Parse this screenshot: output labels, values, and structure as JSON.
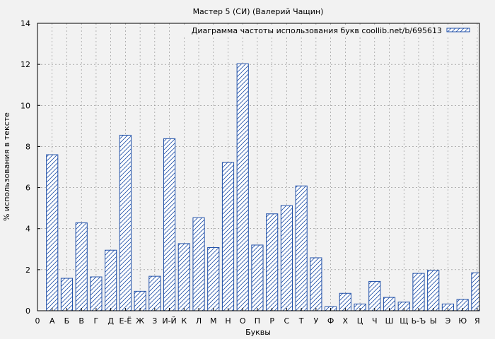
{
  "chart_data": {
    "type": "bar",
    "title": "Мастер 5 (СИ) (Валерий Чащин)",
    "xlabel": "Буквы",
    "ylabel": "% использования в тексте",
    "legend": {
      "label": "Диаграмма частоты использования букв coollib.net/b/695613",
      "placement": "top-right"
    },
    "ylim": [
      0,
      14
    ],
    "yticks": [
      0,
      2,
      4,
      6,
      8,
      10,
      12,
      14
    ],
    "x_origin_label": "0",
    "categories": [
      "А",
      "Б",
      "В",
      "Г",
      "Д",
      "Е-Ё",
      "Ж",
      "З",
      "И-Й",
      "К",
      "Л",
      "М",
      "Н",
      "О",
      "П",
      "Р",
      "С",
      "Т",
      "У",
      "Ф",
      "Х",
      "Ц",
      "Ч",
      "Ш",
      "Щ",
      "Ь-Ъ",
      "Ы",
      "Э",
      "Ю",
      "Я"
    ],
    "values": [
      7.6,
      1.58,
      4.28,
      1.65,
      2.95,
      8.55,
      0.95,
      1.68,
      8.38,
      3.27,
      4.53,
      3.08,
      7.22,
      12.03,
      3.2,
      4.72,
      5.12,
      6.08,
      2.58,
      0.2,
      0.85,
      0.33,
      1.43,
      0.65,
      0.42,
      1.82,
      1.97,
      0.33,
      0.55,
      1.85
    ],
    "grid": true,
    "colors": {
      "bar_stroke": "#1f4fa8",
      "bar_hatch": "#1f4fa8",
      "bar_fill": "#ffffff",
      "background": "#f2f2f2",
      "grid": "#888888"
    }
  }
}
